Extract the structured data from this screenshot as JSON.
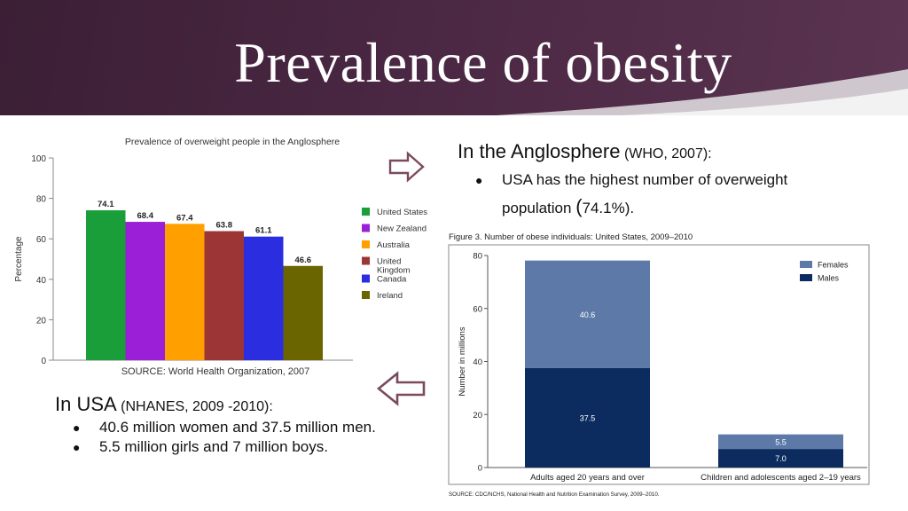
{
  "slide": {
    "title": "Prevalence of obesity"
  },
  "anglosphere": {
    "heading": "In the Anglosphere",
    "source": "(WHO, 2007):",
    "bullets": [
      {
        "text": "USA has the highest number of overweight population ",
        "paren_open": "(",
        "tail": "74.1%)."
      }
    ]
  },
  "usa": {
    "heading": "In USA",
    "source": "(NHANES, 2009 -2010):",
    "bullets": [
      "40.6 million women and 37.5 million men.",
      "5.5 million girls and 7 million boys."
    ]
  },
  "chart_data": [
    {
      "type": "bar",
      "title": "Prevalence of overweight people in the Anglosphere",
      "ylabel": "Percentage",
      "xlabel": "",
      "ylim": [
        0,
        100
      ],
      "yticks": [
        0,
        20,
        40,
        60,
        80,
        100
      ],
      "categories": [
        "United States",
        "New Zealand",
        "Australia",
        "United Kingdom",
        "Canada",
        "Ireland"
      ],
      "values": [
        74.1,
        68.4,
        67.4,
        63.8,
        61.1,
        46.6
      ],
      "value_labels": [
        "74.1",
        "68.4",
        "67.4",
        "63.8",
        "61.1",
        "46.6"
      ],
      "legend_labels": [
        "United States",
        "New Zealand",
        "Australia",
        "United\nKingdom",
        "Canada",
        "Ireland"
      ],
      "colors": [
        "#1a9e3a",
        "#9b1fd6",
        "#ff9f00",
        "#9c3535",
        "#2a2ee0",
        "#6b6500"
      ],
      "legend": "right",
      "grid": false,
      "source": "SOURCE: World Health Organization, 2007"
    },
    {
      "type": "bar",
      "stacked": true,
      "title": "Figure 3. Number of obese individuals: United States, 2009–2010",
      "ylabel": "Number in millions",
      "xlabel": "",
      "ylim": [
        0,
        80
      ],
      "yticks": [
        0,
        20,
        40,
        60,
        80
      ],
      "categories": [
        "Adults aged 20 years and over",
        "Children and adolescents aged 2–19 years"
      ],
      "series": [
        {
          "name": "Males",
          "values": [
            37.5,
            7.0
          ],
          "labels": [
            "37.5",
            "7.0"
          ],
          "color": "#0c2b5e"
        },
        {
          "name": "Females",
          "values": [
            40.6,
            5.5
          ],
          "labels": [
            "40.6",
            "5.5"
          ],
          "color": "#5c79a8"
        }
      ],
      "legend_order": [
        "Females",
        "Males"
      ],
      "legend": "top-right",
      "grid": false,
      "source": "SOURCE: CDC/NCHS, National Health and Nutrition Examination Survey, 2009–2010."
    }
  ],
  "icons": {
    "right_arrow": "right-arrow-icon",
    "left_arrow": "left-arrow-icon"
  }
}
